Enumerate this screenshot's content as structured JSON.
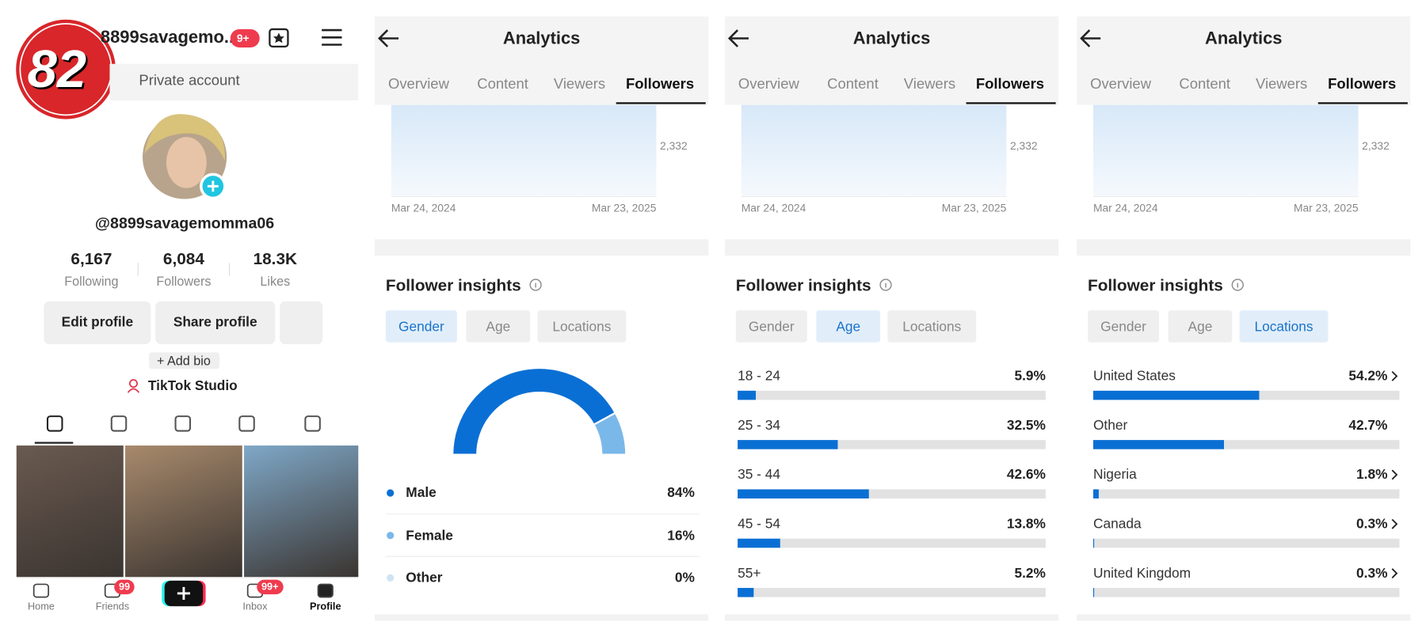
{
  "profile": {
    "badge": "82",
    "username": "8899savagemo...",
    "notifications": "9+",
    "private": "Private account",
    "handle": "@8899savagemomma06",
    "stats": [
      {
        "value": "6,167",
        "label": "Following"
      },
      {
        "value": "6,084",
        "label": "Followers"
      },
      {
        "value": "18.3K",
        "label": "Likes"
      }
    ],
    "buttons": [
      "Edit profile",
      "Share profile"
    ],
    "add_bio": "+ Add bio",
    "studio": "TikTok Studio",
    "nav": [
      {
        "label": "Home"
      },
      {
        "label": "Friends",
        "badge": "99"
      },
      {
        "label": "Inbox",
        "badge": "99+"
      },
      {
        "label": "Profile"
      }
    ]
  },
  "panels": [
    {
      "title": "Analytics",
      "tabs": [
        "Overview",
        "Content",
        "Viewers",
        "Followers"
      ],
      "active_tab": 3,
      "chart": {
        "reference": {
          "value": 2332,
          "label": "2,332"
        },
        "dates": [
          "Mar 24, 2024",
          "Mar 23, 2025"
        ]
      },
      "insights": "Follower insights",
      "filters": [
        "Gender",
        "Age",
        "Locations"
      ],
      "active_filter": 0,
      "gender": [
        {
          "label": "Male",
          "value": 84,
          "value_label": "84%",
          "color": "#0a6fd4"
        },
        {
          "label": "Female",
          "value": 16,
          "value_label": "16%",
          "color": "#7ab8ea"
        },
        {
          "label": "Other",
          "value": 0,
          "value_label": "0%",
          "color": "#cfe3f5"
        }
      ]
    },
    {
      "title": "Analytics",
      "tabs": [
        "Overview",
        "Content",
        "Viewers",
        "Followers"
      ],
      "active_tab": 3,
      "chart": {
        "reference": {
          "value": 2332,
          "label": "2,332"
        },
        "dates": [
          "Mar 24, 2024",
          "Mar 23, 2025"
        ]
      },
      "insights": "Follower insights",
      "filters": [
        "Gender",
        "Age",
        "Locations"
      ],
      "active_filter": 1,
      "rows": [
        {
          "label": "18 - 24",
          "value": 5.9,
          "value_label": "5.9%"
        },
        {
          "label": "25 - 34",
          "value": 32.5,
          "value_label": "32.5%"
        },
        {
          "label": "35 - 44",
          "value": 42.6,
          "value_label": "42.6%"
        },
        {
          "label": "45 - 54",
          "value": 13.8,
          "value_label": "13.8%"
        },
        {
          "label": "55+",
          "value": 5.2,
          "value_label": "5.2%"
        }
      ]
    },
    {
      "title": "Analytics",
      "tabs": [
        "Overview",
        "Content",
        "Viewers",
        "Followers"
      ],
      "active_tab": 3,
      "chart": {
        "reference": {
          "value": 2332,
          "label": "2,332"
        },
        "dates": [
          "Mar 24, 2024",
          "Mar 23, 2025"
        ]
      },
      "insights": "Follower insights",
      "filters": [
        "Gender",
        "Age",
        "Locations"
      ],
      "active_filter": 2,
      "rows": [
        {
          "label": "United States",
          "value": 54.2,
          "value_label": "54.2%",
          "chevron": true
        },
        {
          "label": "Other",
          "value": 42.7,
          "value_label": "42.7%",
          "chevron": false
        },
        {
          "label": "Nigeria",
          "value": 1.8,
          "value_label": "1.8%",
          "chevron": true
        },
        {
          "label": "Canada",
          "value": 0.3,
          "value_label": "0.3%",
          "chevron": true
        },
        {
          "label": "United Kingdom",
          "value": 0.3,
          "value_label": "0.3%",
          "chevron": true
        }
      ]
    }
  ]
}
